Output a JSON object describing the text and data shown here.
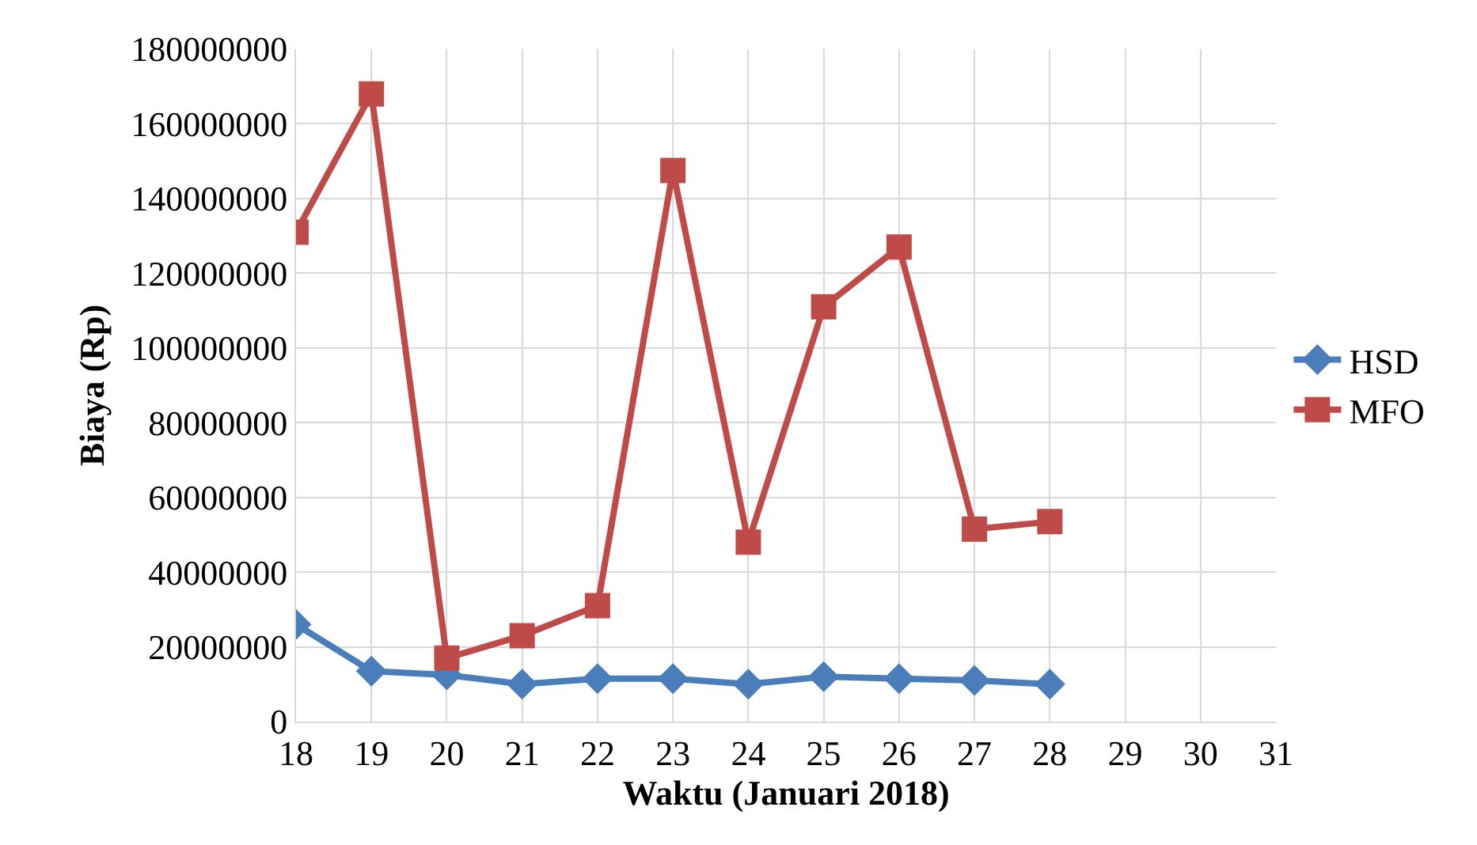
{
  "chart_data": {
    "type": "line",
    "xlabel": "Waktu (Januari 2018)",
    "ylabel": "Biaya (Rp)",
    "x": [
      18,
      19,
      20,
      21,
      22,
      23,
      24,
      25,
      26,
      27,
      28
    ],
    "series": [
      {
        "name": "HSD",
        "color": "#4a7ebb",
        "marker": "diamond",
        "values": [
          26000000,
          13500000,
          12500000,
          10000000,
          11500000,
          11500000,
          10000000,
          12000000,
          11500000,
          11000000,
          10000000
        ]
      },
      {
        "name": "MFO",
        "color": "#be4b48",
        "marker": "square",
        "values": [
          131000000,
          168000000,
          17000000,
          23000000,
          31000000,
          147500000,
          48000000,
          111000000,
          127000000,
          51500000,
          53500000
        ]
      }
    ],
    "xlim": [
      18,
      31
    ],
    "xticks": [
      18,
      19,
      20,
      21,
      22,
      23,
      24,
      25,
      26,
      27,
      28,
      29,
      30,
      31
    ],
    "ylim": [
      0,
      180000000
    ],
    "yticks": [
      0,
      20000000,
      40000000,
      60000000,
      80000000,
      100000000,
      120000000,
      140000000,
      160000000,
      180000000
    ],
    "grid": true,
    "legend": "right",
    "line_style": "solid"
  }
}
